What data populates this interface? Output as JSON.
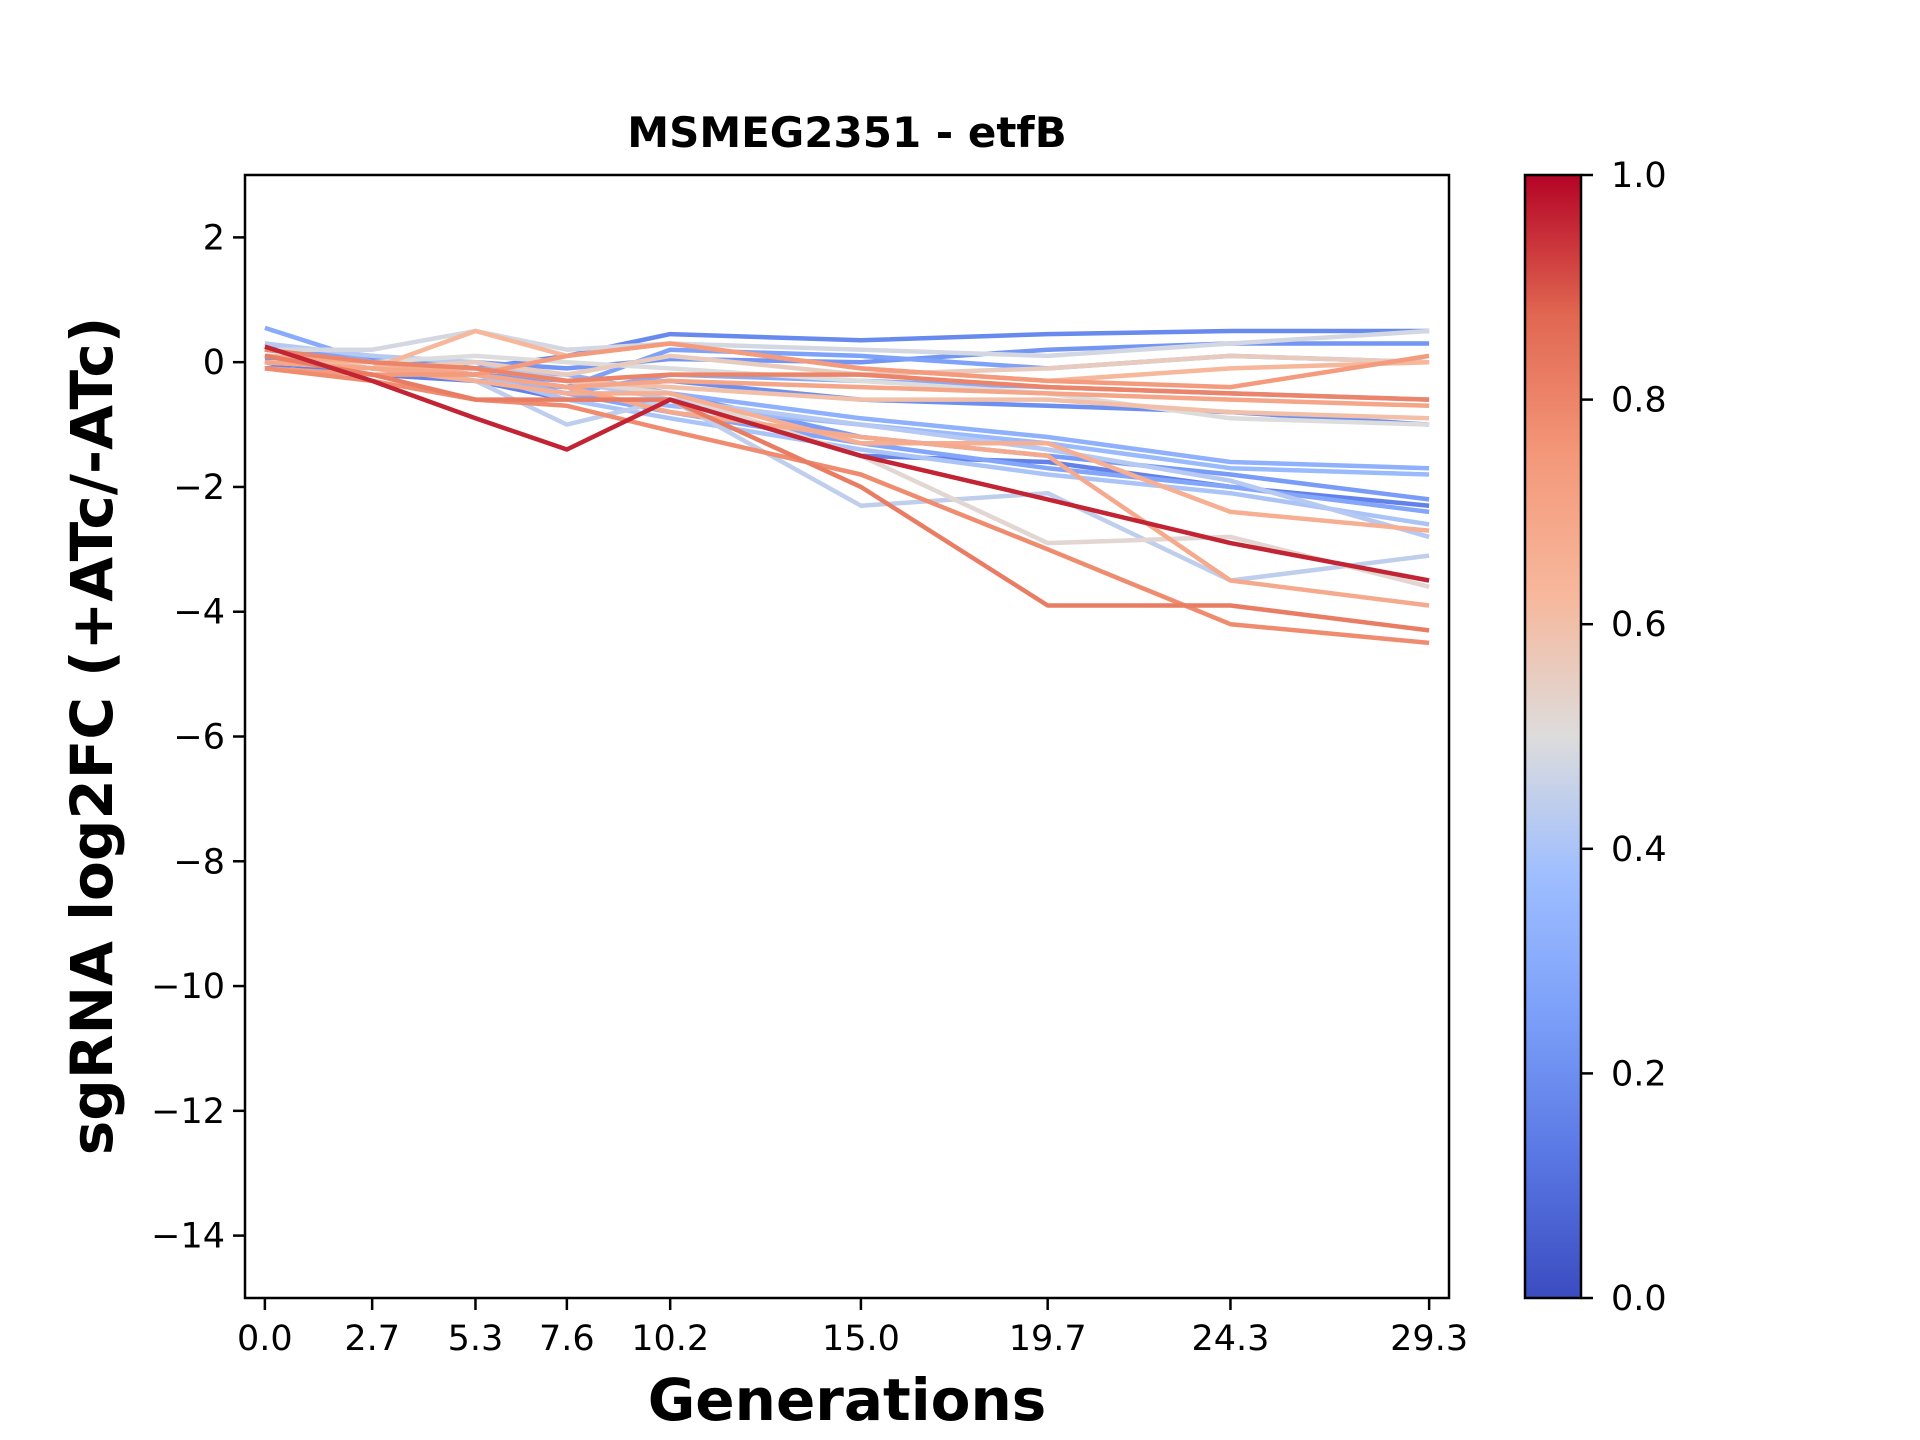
{
  "chart_data": {
    "type": "line",
    "title": "MSMEG2351 - etfB",
    "xlabel": "Generations",
    "ylabel": "sgRNA log2FC (+ATc/-ATc)",
    "x": [
      0.0,
      2.7,
      5.3,
      7.6,
      10.2,
      15.0,
      19.7,
      24.3,
      29.3
    ],
    "x_tick_labels": [
      "0.0",
      "2.7",
      "5.3",
      "7.6",
      "10.2",
      "15.0",
      "19.7",
      "24.3",
      "29.3"
    ],
    "ylim": [
      -15,
      3
    ],
    "y_ticks": [
      2,
      0,
      -2,
      -4,
      -6,
      -8,
      -10,
      -12,
      -14
    ],
    "y_tick_labels": [
      "2",
      "0",
      "−2",
      "−4",
      "−6",
      "−8",
      "−10",
      "−12",
      "−14"
    ],
    "grid": false,
    "colorbar": {
      "colormap": "coolwarm",
      "range": [
        0.0,
        1.0
      ],
      "tick_labels": [
        "0.0",
        "0.2",
        "0.4",
        "0.6",
        "0.8",
        "1.0"
      ],
      "ticks": [
        0.0,
        0.2,
        0.4,
        0.6,
        0.8,
        1.0
      ]
    },
    "series": [
      {
        "c": 0.18,
        "values": [
          -0.1,
          0.1,
          -0.1,
          0.1,
          0.45,
          0.35,
          0.45,
          0.5,
          0.5
        ]
      },
      {
        "c": 0.22,
        "values": [
          0.05,
          0.05,
          0.0,
          -0.1,
          0.05,
          0.0,
          0.2,
          0.3,
          0.3
        ]
      },
      {
        "c": 0.26,
        "values": [
          0.3,
          0.0,
          -0.2,
          -0.4,
          0.2,
          0.1,
          -0.1,
          0.1,
          0.0
        ]
      },
      {
        "c": 0.3,
        "values": [
          0.55,
          0.0,
          -0.2,
          -0.5,
          -0.2,
          -0.3,
          -0.4,
          -0.5,
          -0.6
        ]
      },
      {
        "c": 0.2,
        "values": [
          0.2,
          0.0,
          -0.3,
          -0.4,
          -0.3,
          -0.6,
          -0.7,
          -0.8,
          -1.0
        ]
      },
      {
        "c": 0.16,
        "values": [
          0.0,
          -0.2,
          -0.3,
          -0.6,
          -0.6,
          -1.5,
          -1.6,
          -2.0,
          -2.3
        ]
      },
      {
        "c": 0.24,
        "values": [
          0.1,
          -0.1,
          -0.2,
          -0.3,
          -0.5,
          -1.2,
          -1.5,
          -1.8,
          -2.2
        ]
      },
      {
        "c": 0.32,
        "values": [
          0.0,
          -0.1,
          -0.1,
          -0.2,
          -0.5,
          -0.9,
          -1.2,
          -1.6,
          -1.7
        ]
      },
      {
        "c": 0.36,
        "values": [
          0.2,
          0.0,
          -0.2,
          -0.5,
          -0.7,
          -1.0,
          -1.3,
          -1.7,
          -1.8
        ]
      },
      {
        "c": 0.28,
        "values": [
          0.1,
          0.0,
          -0.3,
          -0.5,
          -0.8,
          -1.3,
          -1.7,
          -2.0,
          -2.4
        ]
      },
      {
        "c": 0.4,
        "values": [
          0.1,
          0.0,
          -0.2,
          -0.6,
          -0.9,
          -1.4,
          -1.8,
          -2.1,
          -2.6
        ]
      },
      {
        "c": 0.42,
        "values": [
          0.3,
          0.1,
          0.0,
          -0.3,
          -0.6,
          -1.0,
          -1.4,
          -1.9,
          -2.8
        ]
      },
      {
        "c": 0.44,
        "values": [
          0.1,
          0.0,
          -0.3,
          -1.0,
          -0.6,
          -2.3,
          -2.1,
          -3.5,
          -3.1
        ]
      },
      {
        "c": 0.48,
        "values": [
          0.2,
          0.2,
          0.5,
          0.2,
          0.3,
          0.2,
          0.1,
          0.3,
          0.5
        ]
      },
      {
        "c": 0.52,
        "values": [
          0.1,
          0.0,
          -0.1,
          -0.3,
          -0.5,
          -1.5,
          -2.9,
          -2.8,
          -3.6
        ]
      },
      {
        "c": 0.5,
        "values": [
          0.0,
          0.0,
          0.1,
          0.0,
          -0.1,
          -0.3,
          -0.5,
          -0.9,
          -1.0
        ]
      },
      {
        "c": 0.56,
        "values": [
          0.1,
          -0.1,
          0.0,
          -0.2,
          0.1,
          -0.2,
          -0.1,
          0.1,
          0.0
        ]
      },
      {
        "c": 0.6,
        "values": [
          0.0,
          -0.1,
          -0.1,
          -0.3,
          -0.4,
          -0.6,
          -0.6,
          -0.8,
          -0.9
        ]
      },
      {
        "c": 0.63,
        "values": [
          0.1,
          -0.1,
          0.5,
          0.1,
          0.3,
          -0.1,
          -0.3,
          -0.1,
          0.0
        ]
      },
      {
        "c": 0.66,
        "values": [
          0.0,
          -0.1,
          -0.3,
          -0.5,
          -0.5,
          -1.3,
          -1.3,
          -2.4,
          -2.7
        ]
      },
      {
        "c": 0.68,
        "values": [
          0.1,
          0.0,
          -0.2,
          -0.4,
          -0.8,
          -1.2,
          -1.5,
          -3.5,
          -3.9
        ]
      },
      {
        "c": 0.7,
        "values": [
          0.0,
          -0.1,
          -0.2,
          -0.4,
          -0.3,
          -0.4,
          -0.5,
          -0.6,
          -0.7
        ]
      },
      {
        "c": 0.74,
        "values": [
          -0.1,
          -0.2,
          -0.2,
          0.1,
          0.3,
          -0.1,
          -0.3,
          -0.4,
          0.1
        ]
      },
      {
        "c": 0.78,
        "values": [
          -0.1,
          -0.3,
          -0.6,
          -0.7,
          -1.1,
          -1.8,
          -3.0,
          -4.2,
          -4.5
        ]
      },
      {
        "c": 0.82,
        "values": [
          0.1,
          -0.2,
          -0.6,
          -0.6,
          -0.6,
          -2.0,
          -3.9,
          -3.9,
          -4.3
        ]
      },
      {
        "c": 0.8,
        "values": [
          0.2,
          0.0,
          -0.1,
          -0.3,
          -0.2,
          -0.2,
          -0.4,
          -0.5,
          -0.6
        ]
      },
      {
        "c": 0.96,
        "values": [
          0.25,
          -0.3,
          -0.9,
          -1.4,
          -0.6,
          -1.5,
          -2.2,
          -2.9,
          -3.5
        ]
      }
    ]
  }
}
